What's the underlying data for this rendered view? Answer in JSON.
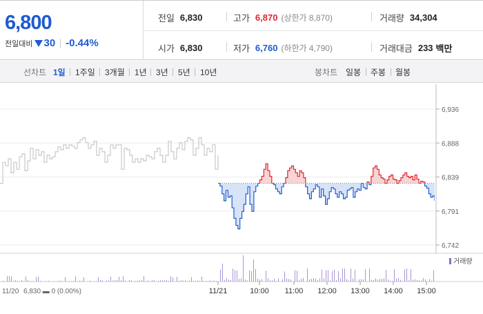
{
  "price": {
    "current": "6,800",
    "change_label": "전일대비",
    "change_value": "30",
    "change_rate": "-0.44%"
  },
  "stats": {
    "prev_close": {
      "label": "전일",
      "value": "6,830"
    },
    "high": {
      "label": "고가",
      "value": "6,870",
      "limit_label": "(상한가 8,870)"
    },
    "volume": {
      "label": "거래량",
      "value": "34,304"
    },
    "open": {
      "label": "시가",
      "value": "6,830"
    },
    "low": {
      "label": "저가",
      "value": "6,760",
      "limit_label": "(하한가 4,790)"
    },
    "amount": {
      "label": "거래대금",
      "value": "233",
      "unit": "백만"
    }
  },
  "toolbar": {
    "line_label": "선차트",
    "line_options": [
      "1일",
      "1주일",
      "3개월",
      "1년",
      "3년",
      "5년",
      "10년"
    ],
    "active_line": "1일",
    "candle_label": "봉차트",
    "candle_options": [
      "일봉",
      "주봉",
      "월봉"
    ]
  },
  "colors": {
    "up": "#e0262c",
    "down": "#1f5bd1",
    "prev_day_line": "#c7c7c7",
    "volume": "#8a6fc7"
  },
  "chart_data": {
    "type": "line",
    "y_ticks": [
      "6,936",
      "6,888",
      "6,839",
      "6,791",
      "6,742"
    ],
    "ylim": [
      6742,
      6936
    ],
    "baseline": 6830,
    "prev_day_x_labels": [
      "11/20",
      "6,830 ▬ 0 (0.00%)"
    ],
    "x_labels": [
      "11/21",
      "10:00",
      "11:00",
      "12:00",
      "13:00",
      "14:00",
      "15:00"
    ],
    "volume_legend": "거래량",
    "prev_day_series": [
      6830,
      6860,
      6855,
      6865,
      6845,
      6860,
      6850,
      6868,
      6872,
      6848,
      6862,
      6880,
      6865,
      6878,
      6870,
      6875,
      6860,
      6870,
      6865,
      6868,
      6875,
      6882,
      6878,
      6885,
      6880,
      6885,
      6883,
      6880,
      6888,
      6892,
      6895,
      6888,
      6880,
      6885,
      6890,
      6870,
      6880,
      6875,
      6860,
      6870,
      6885,
      6880,
      6885,
      6885,
      6850,
      6880,
      6878,
      6870,
      6860,
      6865,
      6860,
      6865,
      6862,
      6870,
      6868,
      6865,
      6875,
      6880,
      6870,
      6860,
      6870,
      6890,
      6875,
      6865,
      6880,
      6888,
      6878,
      6890,
      6895,
      6892,
      6870,
      6880,
      6895,
      6885,
      6870,
      6880,
      6875,
      6885,
      6850,
      6870
    ],
    "today_series": [
      6830,
      6826,
      6815,
      6805,
      6820,
      6810,
      6812,
      6795,
      6780,
      6770,
      6765,
      6780,
      6790,
      6800,
      6815,
      6825,
      6800,
      6790,
      6818,
      6826,
      6830,
      6835,
      6840,
      6850,
      6858,
      6848,
      6840,
      6830,
      6828,
      6822,
      6818,
      6815,
      6825,
      6830,
      6838,
      6848,
      6852,
      6855,
      6850,
      6845,
      6840,
      6848,
      6845,
      6838,
      6825,
      6815,
      6808,
      6818,
      6822,
      6828,
      6825,
      6810,
      6822,
      6812,
      6800,
      6808,
      6818,
      6824,
      6822,
      6815,
      6810,
      6818,
      6815,
      6808,
      6810,
      6820,
      6822,
      6824,
      6810,
      6818,
      6822,
      6820,
      6830,
      6824,
      6822,
      6832,
      6828,
      6840,
      6852,
      6855,
      6850,
      6842,
      6838,
      6836,
      6830,
      6835,
      6840,
      6842,
      6836,
      6835,
      6830,
      6834,
      6838,
      6842,
      6845,
      6840,
      6838,
      6840,
      6835,
      6842,
      6836,
      6830,
      6833,
      6832,
      6826,
      6823,
      6815,
      6810,
      6812,
      6805
    ]
  }
}
